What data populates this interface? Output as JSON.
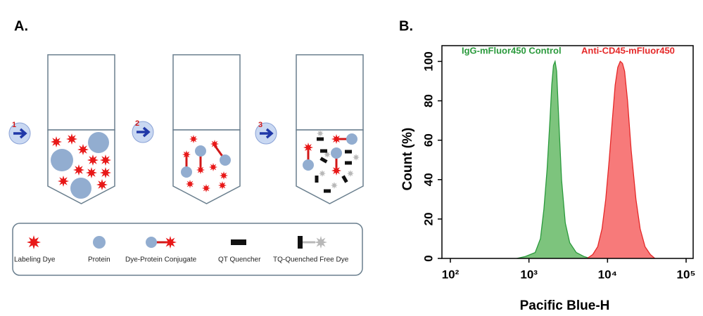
{
  "panel_labels": [
    "A.",
    "B."
  ],
  "diagram": {
    "steps": [
      "1",
      "2",
      "3"
    ],
    "legend": [
      "Labeling Dye",
      "Protein",
      "Dye-Protein Conjugate",
      "QT Quencher",
      "TQ-Quenched Free Dye"
    ]
  },
  "chart_data": {
    "type": "area",
    "xlabel": "Pacific Blue-H",
    "ylabel": "Count  (%)",
    "log_x": true,
    "xlim": [
      100,
      100000
    ],
    "ylim": [
      0,
      108
    ],
    "xticks": [
      {
        "value": 100,
        "label": "10²"
      },
      {
        "value": 1000,
        "label": "10³"
      },
      {
        "value": 10000,
        "label": "10⁴"
      },
      {
        "value": 100000,
        "label": "10⁵"
      }
    ],
    "yticks": [
      0,
      20,
      40,
      60,
      80,
      100
    ],
    "series": [
      {
        "name": "IgG-mFluor450 Control",
        "color": "#2a9a3c",
        "fill": "#7dc47d",
        "x": [
          700,
          900,
          1200,
          1400,
          1550,
          1700,
          1850,
          1950,
          2050,
          2150,
          2250,
          2400,
          2600,
          2900,
          3300,
          4000,
          5000,
          6000
        ],
        "values": [
          0,
          1,
          3,
          10,
          25,
          45,
          70,
          88,
          98,
          100,
          95,
          70,
          40,
          18,
          8,
          3,
          1,
          0
        ]
      },
      {
        "name": "Anti-CD45-mFluor450",
        "color": "#e52828",
        "fill": "#f77a7a",
        "x": [
          5500,
          6500,
          7500,
          8500,
          9500,
          10500,
          11500,
          12500,
          13500,
          14500,
          15500,
          16500,
          18000,
          20000,
          23000,
          26000,
          30000,
          35000,
          40000
        ],
        "values": [
          0,
          2,
          6,
          15,
          30,
          50,
          70,
          88,
          97,
          100,
          99,
          95,
          80,
          55,
          30,
          15,
          6,
          2,
          0
        ]
      }
    ]
  }
}
